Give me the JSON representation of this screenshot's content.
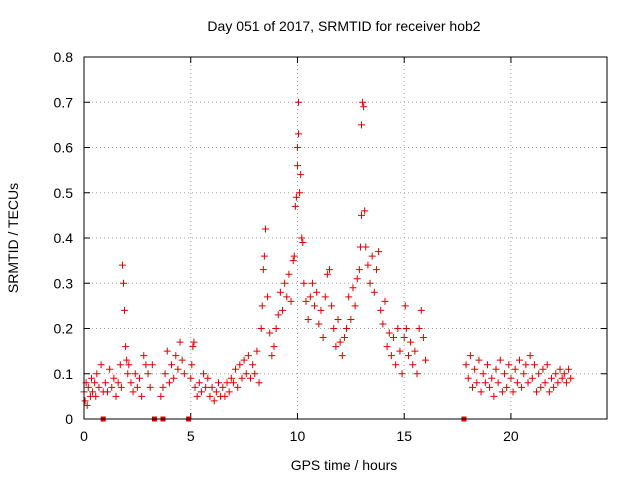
{
  "chart_data": {
    "type": "scatter",
    "title": "Day 051 of 2017, SRMTID for receiver hob2",
    "xlabel": "GPS time / hours",
    "ylabel": "SRMTID / TECUs",
    "xlim": [
      0,
      24.5
    ],
    "ylim": [
      0,
      0.8
    ],
    "xticks": [
      0,
      5,
      10,
      15,
      20
    ],
    "xtick_labels": [
      "0",
      "5",
      "10",
      "15",
      "20"
    ],
    "yticks": [
      0,
      0.1,
      0.2,
      0.3,
      0.4,
      0.5,
      0.6,
      0.7,
      0.8
    ],
    "ytick_labels": [
      "0",
      "0.1",
      "0.2",
      "0.3",
      "0.4",
      "0.5",
      "0.6",
      "0.7",
      "0.8"
    ],
    "grid": true,
    "series": [
      {
        "name": "SRMTID",
        "color": "#e00000",
        "marker": "plus",
        "points": [
          [
            0.0,
            0.06
          ],
          [
            0.05,
            0.04
          ],
          [
            0.1,
            0.08
          ],
          [
            0.15,
            0.03
          ],
          [
            0.2,
            0.07
          ],
          [
            0.3,
            0.05
          ],
          [
            0.35,
            0.09
          ],
          [
            0.4,
            0.06
          ],
          [
            0.5,
            0.08
          ],
          [
            0.55,
            0.05
          ],
          [
            0.6,
            0.1
          ],
          [
            0.7,
            0.07
          ],
          [
            0.8,
            0.12
          ],
          [
            0.9,
            0.06
          ],
          [
            1.0,
            0.08
          ],
          [
            1.1,
            0.06
          ],
          [
            1.2,
            0.11
          ],
          [
            1.3,
            0.07
          ],
          [
            1.4,
            0.09
          ],
          [
            1.5,
            0.05
          ],
          [
            1.6,
            0.08
          ],
          [
            1.7,
            0.12
          ],
          [
            1.75,
            0.07
          ],
          [
            1.8,
            0.34
          ],
          [
            1.85,
            0.3
          ],
          [
            1.9,
            0.24
          ],
          [
            1.95,
            0.16
          ],
          [
            2.0,
            0.13
          ],
          [
            2.05,
            0.1
          ],
          [
            2.1,
            0.12
          ],
          [
            2.2,
            0.08
          ],
          [
            2.3,
            0.06
          ],
          [
            2.4,
            0.1
          ],
          [
            2.5,
            0.07
          ],
          [
            2.6,
            0.09
          ],
          [
            2.7,
            0.05
          ],
          [
            2.8,
            0.14
          ],
          [
            2.9,
            0.12
          ],
          [
            3.0,
            0.1
          ],
          [
            3.1,
            0.07
          ],
          [
            3.2,
            0.12
          ],
          [
            3.6,
            0.05
          ],
          [
            3.7,
            0.07
          ],
          [
            3.8,
            0.1
          ],
          [
            3.9,
            0.15
          ],
          [
            4.0,
            0.08
          ],
          [
            4.1,
            0.12
          ],
          [
            4.2,
            0.09
          ],
          [
            4.3,
            0.14
          ],
          [
            4.4,
            0.11
          ],
          [
            4.5,
            0.17
          ],
          [
            4.6,
            0.13
          ],
          [
            4.7,
            0.1
          ],
          [
            5.0,
            0.09
          ],
          [
            5.05,
            0.12
          ],
          [
            5.1,
            0.16
          ],
          [
            5.15,
            0.17
          ],
          [
            5.2,
            0.07
          ],
          [
            5.3,
            0.05
          ],
          [
            5.4,
            0.08
          ],
          [
            5.5,
            0.06
          ],
          [
            5.6,
            0.1
          ],
          [
            5.7,
            0.07
          ],
          [
            5.8,
            0.09
          ],
          [
            5.9,
            0.05
          ],
          [
            6.0,
            0.07
          ],
          [
            6.1,
            0.04
          ],
          [
            6.2,
            0.06
          ],
          [
            6.3,
            0.08
          ],
          [
            6.4,
            0.05
          ],
          [
            6.5,
            0.07
          ],
          [
            6.6,
            0.05
          ],
          [
            6.7,
            0.08
          ],
          [
            6.8,
            0.06
          ],
          [
            6.9,
            0.09
          ],
          [
            7.0,
            0.08
          ],
          [
            7.1,
            0.11
          ],
          [
            7.2,
            0.07
          ],
          [
            7.3,
            0.12
          ],
          [
            7.4,
            0.09
          ],
          [
            7.5,
            0.13
          ],
          [
            7.6,
            0.1
          ],
          [
            7.7,
            0.14
          ],
          [
            7.8,
            0.09
          ],
          [
            7.9,
            0.12
          ],
          [
            8.0,
            0.1
          ],
          [
            8.1,
            0.15
          ],
          [
            8.2,
            0.08
          ],
          [
            8.3,
            0.2
          ],
          [
            8.35,
            0.25
          ],
          [
            8.4,
            0.33
          ],
          [
            8.45,
            0.36
          ],
          [
            8.5,
            0.42
          ],
          [
            8.6,
            0.27
          ],
          [
            8.7,
            0.19
          ],
          [
            8.8,
            0.14
          ],
          [
            8.9,
            0.16
          ],
          [
            9.0,
            0.2
          ],
          [
            9.1,
            0.23
          ],
          [
            9.2,
            0.28
          ],
          [
            9.3,
            0.24
          ],
          [
            9.4,
            0.3
          ],
          [
            9.5,
            0.27
          ],
          [
            9.6,
            0.32
          ],
          [
            9.7,
            0.26
          ],
          [
            9.8,
            0.35
          ],
          [
            9.85,
            0.36
          ],
          [
            9.9,
            0.47
          ],
          [
            9.95,
            0.49
          ],
          [
            10.0,
            0.56
          ],
          [
            10.0,
            0.6
          ],
          [
            10.05,
            0.63
          ],
          [
            10.05,
            0.7
          ],
          [
            10.1,
            0.5
          ],
          [
            10.15,
            0.54
          ],
          [
            10.2,
            0.4
          ],
          [
            10.25,
            0.39
          ],
          [
            10.3,
            0.3
          ],
          [
            10.4,
            0.26
          ],
          [
            10.5,
            0.22
          ],
          [
            10.6,
            0.27
          ],
          [
            10.7,
            0.3
          ],
          [
            10.8,
            0.25
          ],
          [
            10.9,
            0.28
          ],
          [
            11.0,
            0.21
          ],
          [
            11.1,
            0.24
          ],
          [
            11.2,
            0.18
          ],
          [
            11.3,
            0.27
          ],
          [
            11.4,
            0.32
          ],
          [
            11.5,
            0.33
          ],
          [
            11.6,
            0.25
          ],
          [
            11.7,
            0.2
          ],
          [
            11.8,
            0.16
          ],
          [
            11.9,
            0.22
          ],
          [
            12.0,
            0.17
          ],
          [
            12.1,
            0.14
          ],
          [
            12.2,
            0.18
          ],
          [
            12.3,
            0.2
          ],
          [
            12.4,
            0.27
          ],
          [
            12.5,
            0.22
          ],
          [
            12.6,
            0.29
          ],
          [
            12.7,
            0.25
          ],
          [
            12.8,
            0.31
          ],
          [
            12.9,
            0.33
          ],
          [
            12.95,
            0.38
          ],
          [
            13.0,
            0.45
          ],
          [
            13.0,
            0.65
          ],
          [
            13.05,
            0.7
          ],
          [
            13.1,
            0.69
          ],
          [
            13.15,
            0.46
          ],
          [
            13.2,
            0.38
          ],
          [
            13.3,
            0.34
          ],
          [
            13.4,
            0.3
          ],
          [
            13.5,
            0.36
          ],
          [
            13.6,
            0.28
          ],
          [
            13.7,
            0.33
          ],
          [
            13.8,
            0.37
          ],
          [
            13.9,
            0.24
          ],
          [
            14.0,
            0.21
          ],
          [
            14.1,
            0.26
          ],
          [
            14.2,
            0.16
          ],
          [
            14.3,
            0.19
          ],
          [
            14.4,
            0.14
          ],
          [
            14.5,
            0.18
          ],
          [
            14.6,
            0.12
          ],
          [
            14.7,
            0.2
          ],
          [
            14.8,
            0.15
          ],
          [
            14.9,
            0.1
          ],
          [
            15.0,
            0.18
          ],
          [
            15.05,
            0.25
          ],
          [
            15.1,
            0.2
          ],
          [
            15.2,
            0.14
          ],
          [
            15.3,
            0.17
          ],
          [
            15.4,
            0.12
          ],
          [
            15.5,
            0.15
          ],
          [
            15.6,
            0.1
          ],
          [
            15.7,
            0.2
          ],
          [
            15.8,
            0.24
          ],
          [
            15.9,
            0.18
          ],
          [
            16.0,
            0.13
          ],
          [
            17.9,
            0.12
          ],
          [
            18.0,
            0.09
          ],
          [
            18.1,
            0.14
          ],
          [
            18.2,
            0.07
          ],
          [
            18.3,
            0.11
          ],
          [
            18.4,
            0.08
          ],
          [
            18.5,
            0.13
          ],
          [
            18.6,
            0.06
          ],
          [
            18.7,
            0.1
          ],
          [
            18.8,
            0.08
          ],
          [
            18.9,
            0.12
          ],
          [
            19.0,
            0.07
          ],
          [
            19.1,
            0.09
          ],
          [
            19.2,
            0.05
          ],
          [
            19.3,
            0.11
          ],
          [
            19.4,
            0.08
          ],
          [
            19.5,
            0.13
          ],
          [
            19.6,
            0.06
          ],
          [
            19.7,
            0.1
          ],
          [
            19.8,
            0.07
          ],
          [
            19.9,
            0.12
          ],
          [
            20.0,
            0.09
          ],
          [
            20.1,
            0.06
          ],
          [
            20.2,
            0.11
          ],
          [
            20.3,
            0.08
          ],
          [
            20.4,
            0.13
          ],
          [
            20.5,
            0.07
          ],
          [
            20.6,
            0.1
          ],
          [
            20.7,
            0.12
          ],
          [
            20.8,
            0.08
          ],
          [
            20.9,
            0.14
          ],
          [
            21.0,
            0.09
          ],
          [
            21.1,
            0.12
          ],
          [
            21.2,
            0.06
          ],
          [
            21.3,
            0.1
          ],
          [
            21.4,
            0.07
          ],
          [
            21.5,
            0.11
          ],
          [
            21.6,
            0.08
          ],
          [
            21.7,
            0.12
          ],
          [
            21.8,
            0.06
          ],
          [
            21.9,
            0.09
          ],
          [
            22.0,
            0.07
          ],
          [
            22.1,
            0.1
          ],
          [
            22.2,
            0.08
          ],
          [
            22.3,
            0.11
          ],
          [
            22.4,
            0.09
          ],
          [
            22.5,
            0.1
          ],
          [
            22.6,
            0.08
          ],
          [
            22.7,
            0.11
          ],
          [
            22.8,
            0.09
          ]
        ]
      }
    ],
    "gap_markers_x": [
      0.9,
      3.3,
      3.7,
      4.9,
      17.8
    ]
  }
}
